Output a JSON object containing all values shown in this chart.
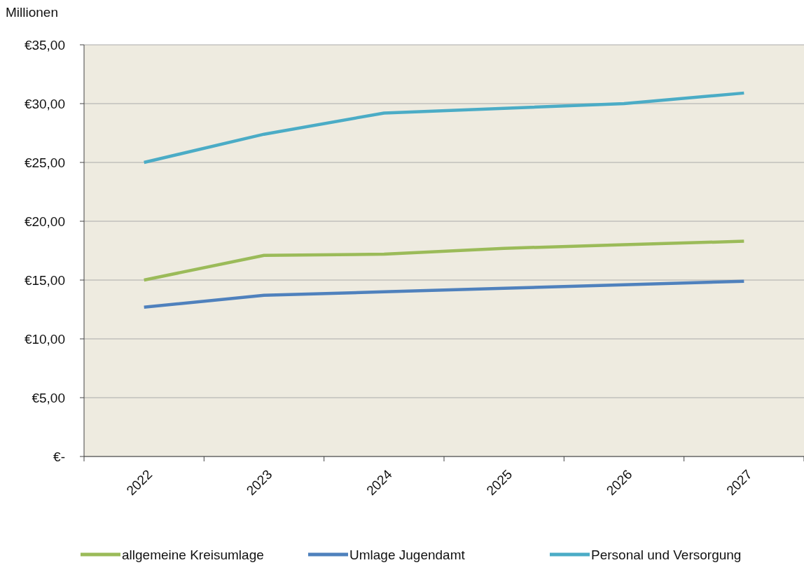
{
  "chart_data": {
    "type": "line",
    "ylabel": "Millionen",
    "categories": [
      "2022",
      "2023",
      "2024",
      "2025",
      "2026",
      "2027"
    ],
    "series": [
      {
        "name": "allgemeine Kreisumlage",
        "color": "#9bbb59",
        "values": [
          15.0,
          17.1,
          17.2,
          17.7,
          18.0,
          18.3
        ]
      },
      {
        "name": "Umlage Jugendamt",
        "color": "#4f81bd",
        "values": [
          12.7,
          13.7,
          14.0,
          14.3,
          14.6,
          14.9
        ]
      },
      {
        "name": "Personal und Versorgung",
        "color": "#4bacc6",
        "values": [
          25.0,
          27.4,
          29.2,
          29.6,
          30.0,
          30.9
        ]
      }
    ],
    "ylim": [
      0,
      35
    ],
    "yticks": [
      {
        "value": 0,
        "label": "€-"
      },
      {
        "value": 5,
        "label": "€5,00"
      },
      {
        "value": 10,
        "label": "€10,00"
      },
      {
        "value": 15,
        "label": "€15,00"
      },
      {
        "value": 20,
        "label": "€20,00"
      },
      {
        "value": 25,
        "label": "€25,00"
      },
      {
        "value": 30,
        "label": "€30,00"
      },
      {
        "value": 35,
        "label": "€35,00"
      }
    ],
    "grid": "y",
    "legend": "bottom",
    "marker": "none",
    "line_style": "solid"
  }
}
